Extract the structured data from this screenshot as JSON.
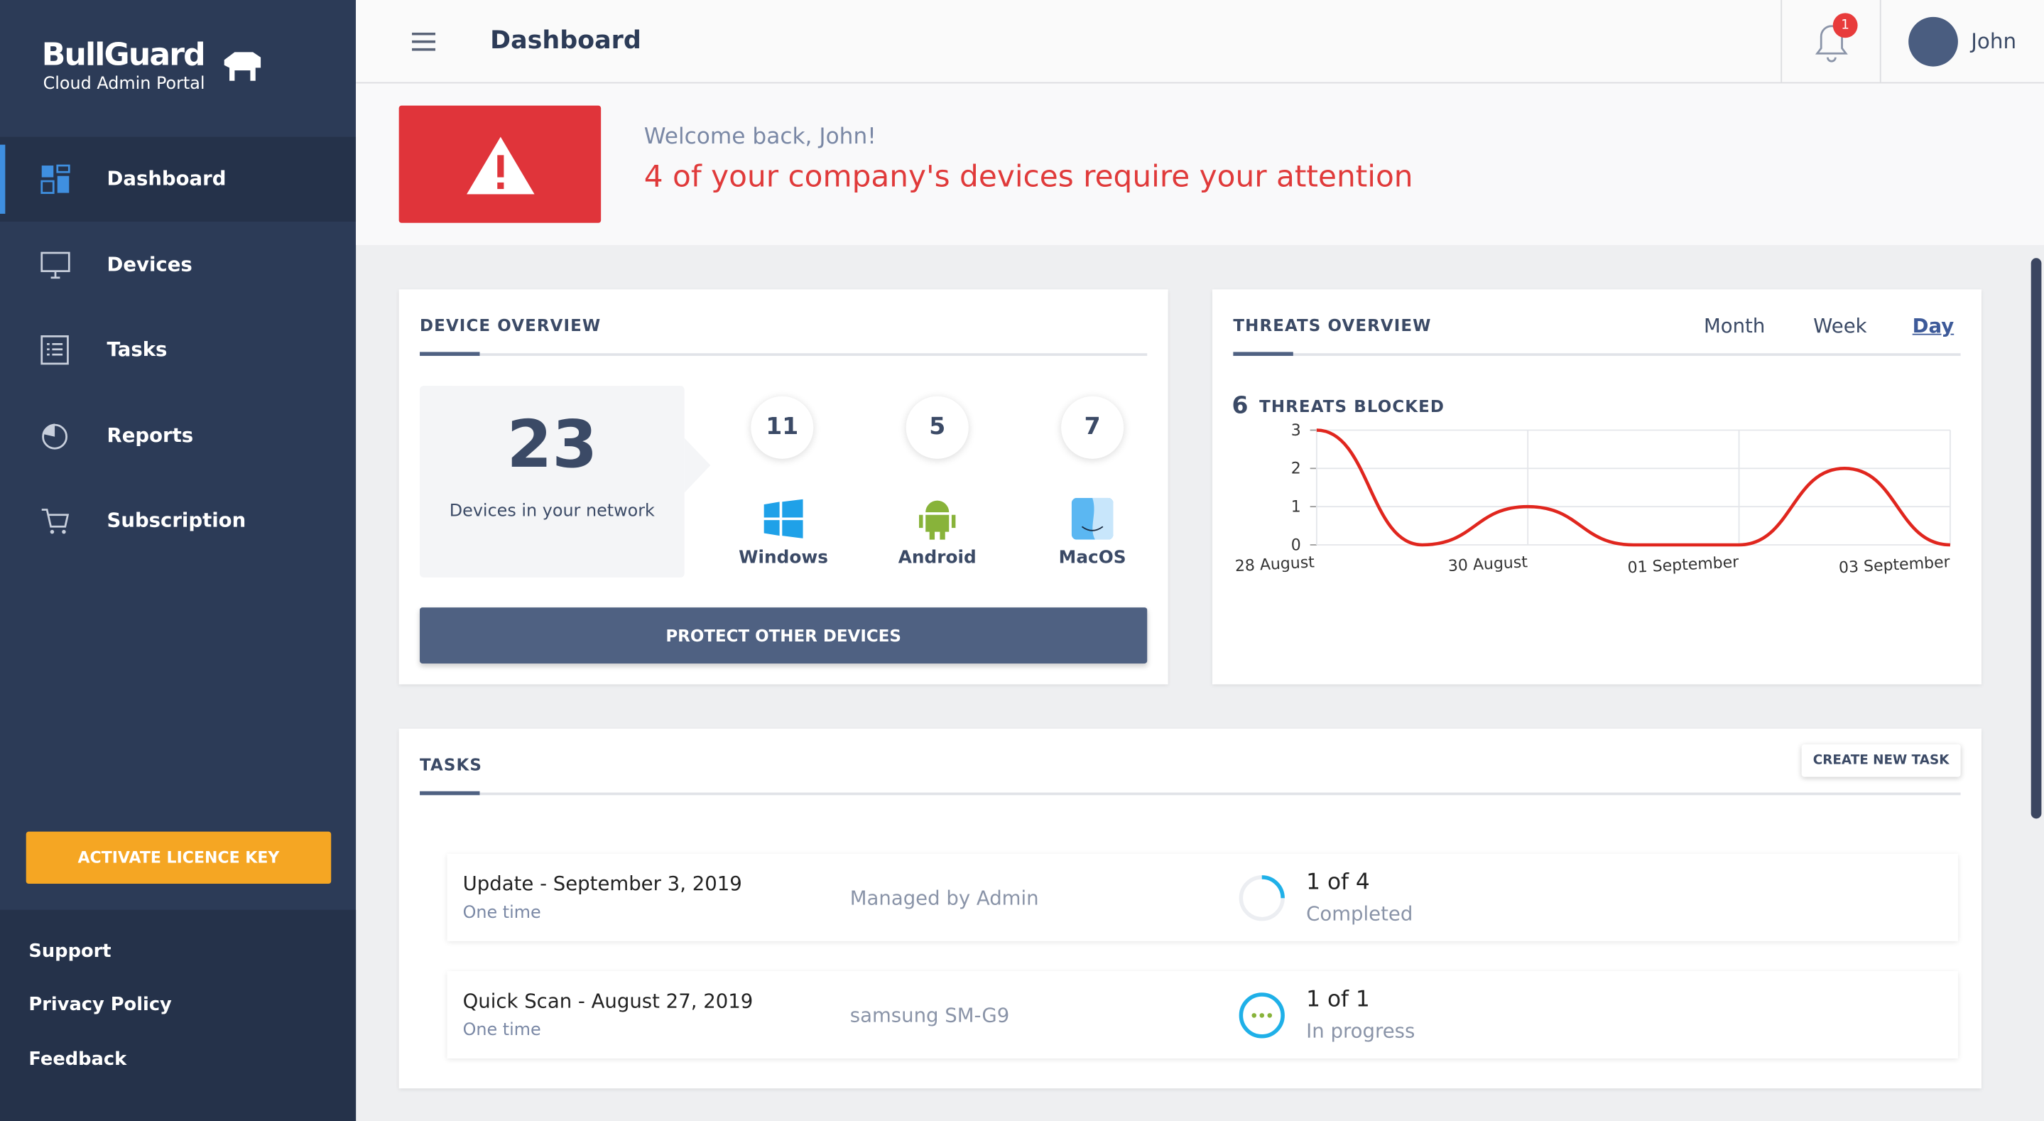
{
  "sidebar": {
    "logo": "BullGuard",
    "logo_sub": "Cloud Admin Portal",
    "nav": [
      "Dashboard",
      "Devices",
      "Tasks",
      "Reports",
      "Subscription"
    ],
    "active_nav": 0,
    "activate_button": "ACTIVATE LICENCE KEY",
    "footer_links": [
      "Support",
      "Privacy Policy",
      "Feedback"
    ]
  },
  "header": {
    "title": "Dashboard",
    "notifications": 1,
    "user": "John"
  },
  "alert": {
    "welcome": "Welcome back, John!",
    "message": "4 of your company's devices require your attention"
  },
  "device_overview": {
    "title": "DEVICE OVERVIEW",
    "total": 23,
    "total_label": "Devices in your network",
    "platforms": [
      {
        "name": "Windows",
        "count": 11
      },
      {
        "name": "Android",
        "count": 5
      },
      {
        "name": "MacOS",
        "count": 7
      }
    ],
    "button": "PROTECT OTHER DEVICES"
  },
  "threats_overview": {
    "title": "THREATS OVERVIEW",
    "tabs": [
      "Month",
      "Week",
      "Day"
    ],
    "active_tab": 2,
    "blocked_count": 6,
    "blocked_label": "THREATS BLOCKED",
    "chart_data": {
      "type": "line",
      "categories": [
        "28 August",
        null,
        "30 August",
        null,
        "01 September",
        null,
        "03 September"
      ],
      "values": [
        3,
        0,
        1,
        0,
        0,
        2,
        0
      ],
      "color": "#e0261e",
      "ylim": [
        0,
        3
      ],
      "yticks": [
        0,
        1,
        2,
        3
      ],
      "grid": true
    }
  },
  "tasks": {
    "title": "TASKS",
    "create_button": "CREATE NEW TASK",
    "rows": [
      {
        "name": "Update - September 3, 2019",
        "schedule": "One time",
        "target": "Managed by Admin",
        "progress": "1 of 4",
        "status": "Completed"
      },
      {
        "name": "Quick Scan - August 27, 2019",
        "schedule": "One time",
        "target": "samsung SM-G9",
        "progress": "1 of 1",
        "status": "In progress"
      }
    ]
  }
}
